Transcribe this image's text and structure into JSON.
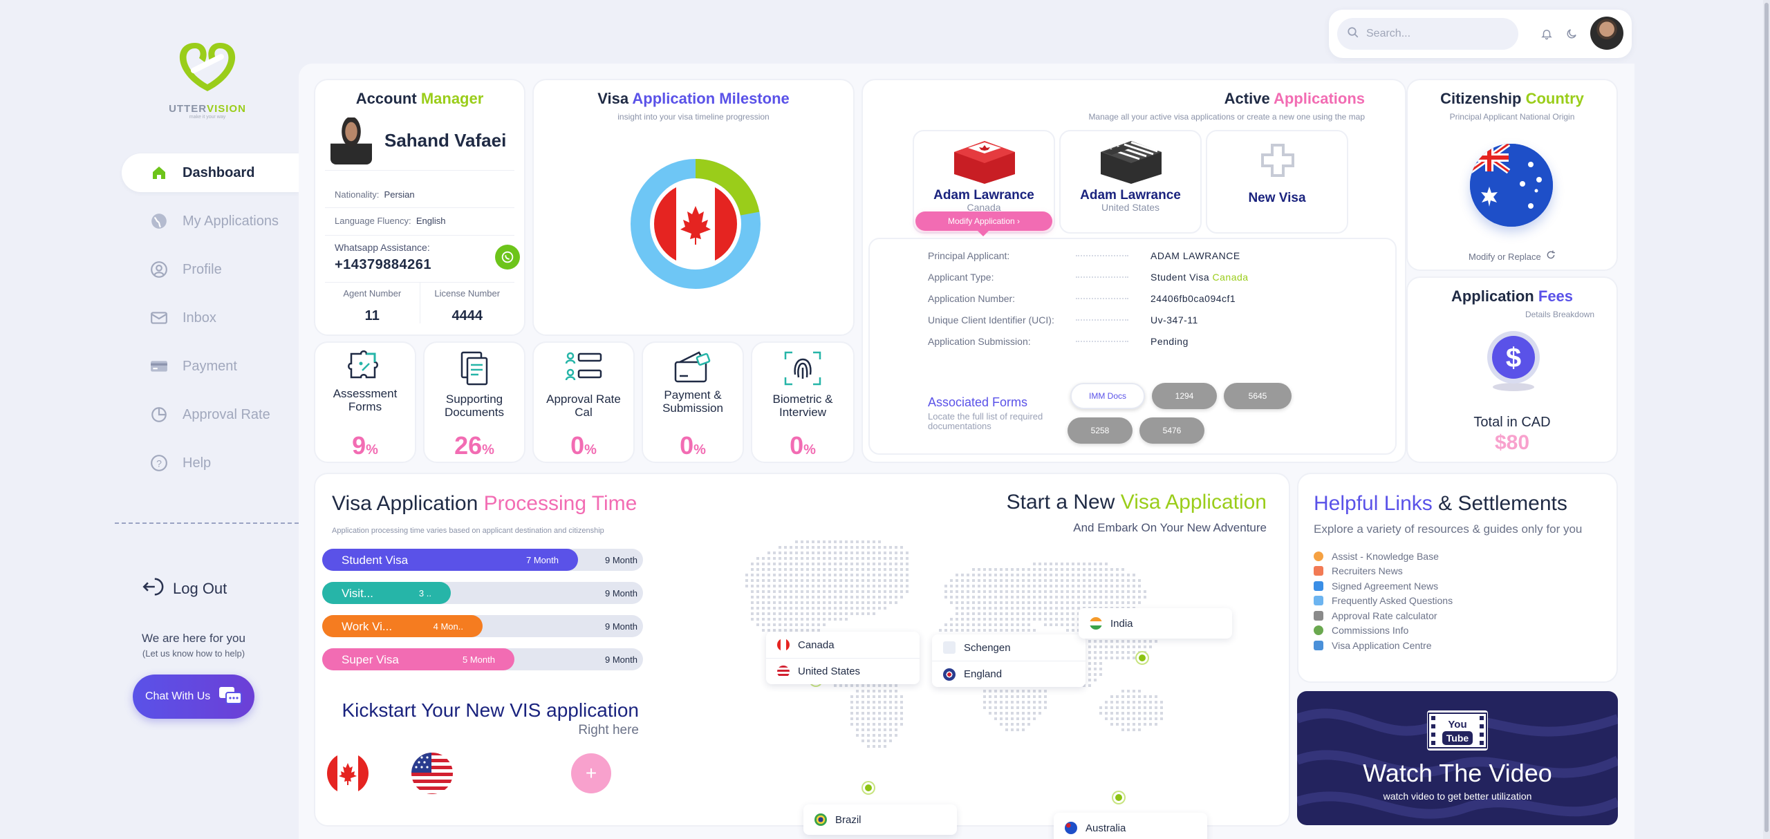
{
  "brand": {
    "name_part1": "UTTER",
    "name_part2": "VISION",
    "tagline": "make it your way"
  },
  "sidebar": {
    "items": [
      {
        "label": "Dashboard",
        "icon": "home-icon",
        "active": true
      },
      {
        "label": "My Applications",
        "icon": "globe-icon",
        "active": false
      },
      {
        "label": "Profile",
        "icon": "user-circle-icon",
        "active": false
      },
      {
        "label": "Inbox",
        "icon": "mail-icon",
        "active": false
      },
      {
        "label": "Payment",
        "icon": "credit-card-icon",
        "active": false
      },
      {
        "label": "Approval Rate",
        "icon": "pie-chart-icon",
        "active": false
      },
      {
        "label": "Help",
        "icon": "help-circle-icon",
        "active": false
      }
    ],
    "logout_label": "Log Out",
    "help_line1": "We are here for you",
    "help_line2": "(Let us know how to help)",
    "chat_label": "Chat With Us"
  },
  "topbar": {
    "search_placeholder": "Search...",
    "icons": [
      "bell-icon",
      "moon-icon",
      "avatar"
    ]
  },
  "account_manager": {
    "title_part1": "Account",
    "title_part2": "Manager",
    "name": "Sahand Vafaei",
    "nationality_label": "Nationality:",
    "nationality": "Persian",
    "language_label": "Language Fluency:",
    "language": "English",
    "whatsapp_label": "Whatsapp Assistance:",
    "whatsapp_number": "+14379884261",
    "agent_number_label": "Agent Number",
    "agent_number": "11",
    "license_number_label": "License Number",
    "license_number": "4444"
  },
  "milestone": {
    "title_part1": "Visa",
    "title_part2": "Application Milestone",
    "subtitle": "insight into your visa timeline progression",
    "progress_fraction": 0.22,
    "colors": {
      "done": "#9acd1a",
      "remaining": "#6ec6f5"
    }
  },
  "stats": [
    {
      "label": "Assessment Forms",
      "value": "9",
      "unit": "%",
      "icon": "puzzle-icon"
    },
    {
      "label": "Supporting Documents",
      "value": "26",
      "unit": "%",
      "icon": "documents-icon"
    },
    {
      "label": "Approval Rate Cal",
      "value": "0",
      "unit": "%",
      "icon": "checklist-icon"
    },
    {
      "label": "Payment & Submission",
      "value": "0",
      "unit": "%",
      "icon": "wallet-icon"
    },
    {
      "label": "Biometric & Interview",
      "value": "0",
      "unit": "%",
      "icon": "fingerprint-icon"
    }
  ],
  "active_apps": {
    "title_part1": "Active",
    "title_part2": "Applications",
    "subtitle": "Manage all your active visa applications or create a new one using the map",
    "tiles": [
      {
        "name": "Adam Lawrance",
        "country": "Canada"
      },
      {
        "name": "Adam Lawrance",
        "country": "United States"
      }
    ],
    "new_visa_label": "New Visa",
    "modify_label": "Modify Application",
    "details": [
      {
        "key": "Principal Applicant:",
        "value": "ADAM LAWRANCE"
      },
      {
        "key": "Applicant Type:",
        "value": "Student Visa",
        "value_extra": "Canada"
      },
      {
        "key": "Application Number:",
        "value": "24406fb0ca094cf1"
      },
      {
        "key": "Unique Client Identifier (UCI):",
        "value": "Uv-347-11"
      },
      {
        "key": "Application Submission:",
        "value": "Pending"
      }
    ],
    "assoc_title": "Associated Forms",
    "assoc_sub": "Locate the full list of required documentations",
    "chips": [
      "IMM Docs",
      "1294",
      "5645",
      "5258",
      "5476"
    ]
  },
  "citizenship": {
    "title_part1": "Citizenship",
    "title_part2": "Country",
    "subtitle": "Principal Applicant National Origin",
    "modify_label": "Modify or Replace"
  },
  "fees": {
    "title_part1": "Application",
    "title_part2": "Fees",
    "subtitle": "Details Breakdown",
    "total_label": "Total in CAD",
    "total_value": "$80"
  },
  "processing": {
    "title_part1": "Visa Application",
    "title_part2": "Processing Time",
    "subtitle": "Application processing time varies based on applicant destination and citizenship",
    "bars": [
      {
        "name": "Student Visa",
        "duration": "7 Month",
        "max": "9 Month",
        "fraction": 0.797,
        "color": "#5a52e8"
      },
      {
        "name": "Visit...",
        "duration": "3 ..",
        "max": "9 Month",
        "fraction": 0.4,
        "color": "#26b5a8"
      },
      {
        "name": "Work Vi...",
        "duration": "4 Mon..",
        "max": "9 Month",
        "fraction": 0.5,
        "color": "#f57c20"
      },
      {
        "name": "Super Visa",
        "duration": "5 Month",
        "max": "9 Month",
        "fraction": 0.6,
        "color": "#f26cb3"
      }
    ],
    "kick_title": "Kickstart Your New VIS application",
    "kick_sub": "Right here"
  },
  "new_app": {
    "title_part1": "Start a New",
    "title_part2": "Visa Application",
    "subtitle": "And Embark On Your New Adventure",
    "pop_na": [
      "Canada",
      "United States"
    ],
    "pop_eu": [
      "Schengen",
      "England"
    ],
    "india": "India",
    "brazil": "Brazil",
    "australia": "Australia"
  },
  "links": {
    "title_part1": "Helpful Links",
    "title_part2": "& Settlements",
    "subtitle": "Explore a variety of resources & guides only for you",
    "items": [
      {
        "label": "Assist - Knowledge Base",
        "color": "#f5a142"
      },
      {
        "label": "Recruiters News",
        "color": "#f27a54"
      },
      {
        "label": "Signed Agreement News",
        "color": "#3a8ee6"
      },
      {
        "label": "Frequently Asked Questions",
        "color": "#6cb4f0"
      },
      {
        "label": "Approval Rate calculator",
        "color": "#8a8a8a"
      },
      {
        "label": "Commissions Info",
        "color": "#6aa84f"
      },
      {
        "label": "Visa Application Centre",
        "color": "#4a90d9"
      }
    ]
  },
  "video": {
    "title": "Watch The Video",
    "subtitle": "watch video to get better utilization",
    "badge_top": "You",
    "badge_bottom": "Tube"
  }
}
